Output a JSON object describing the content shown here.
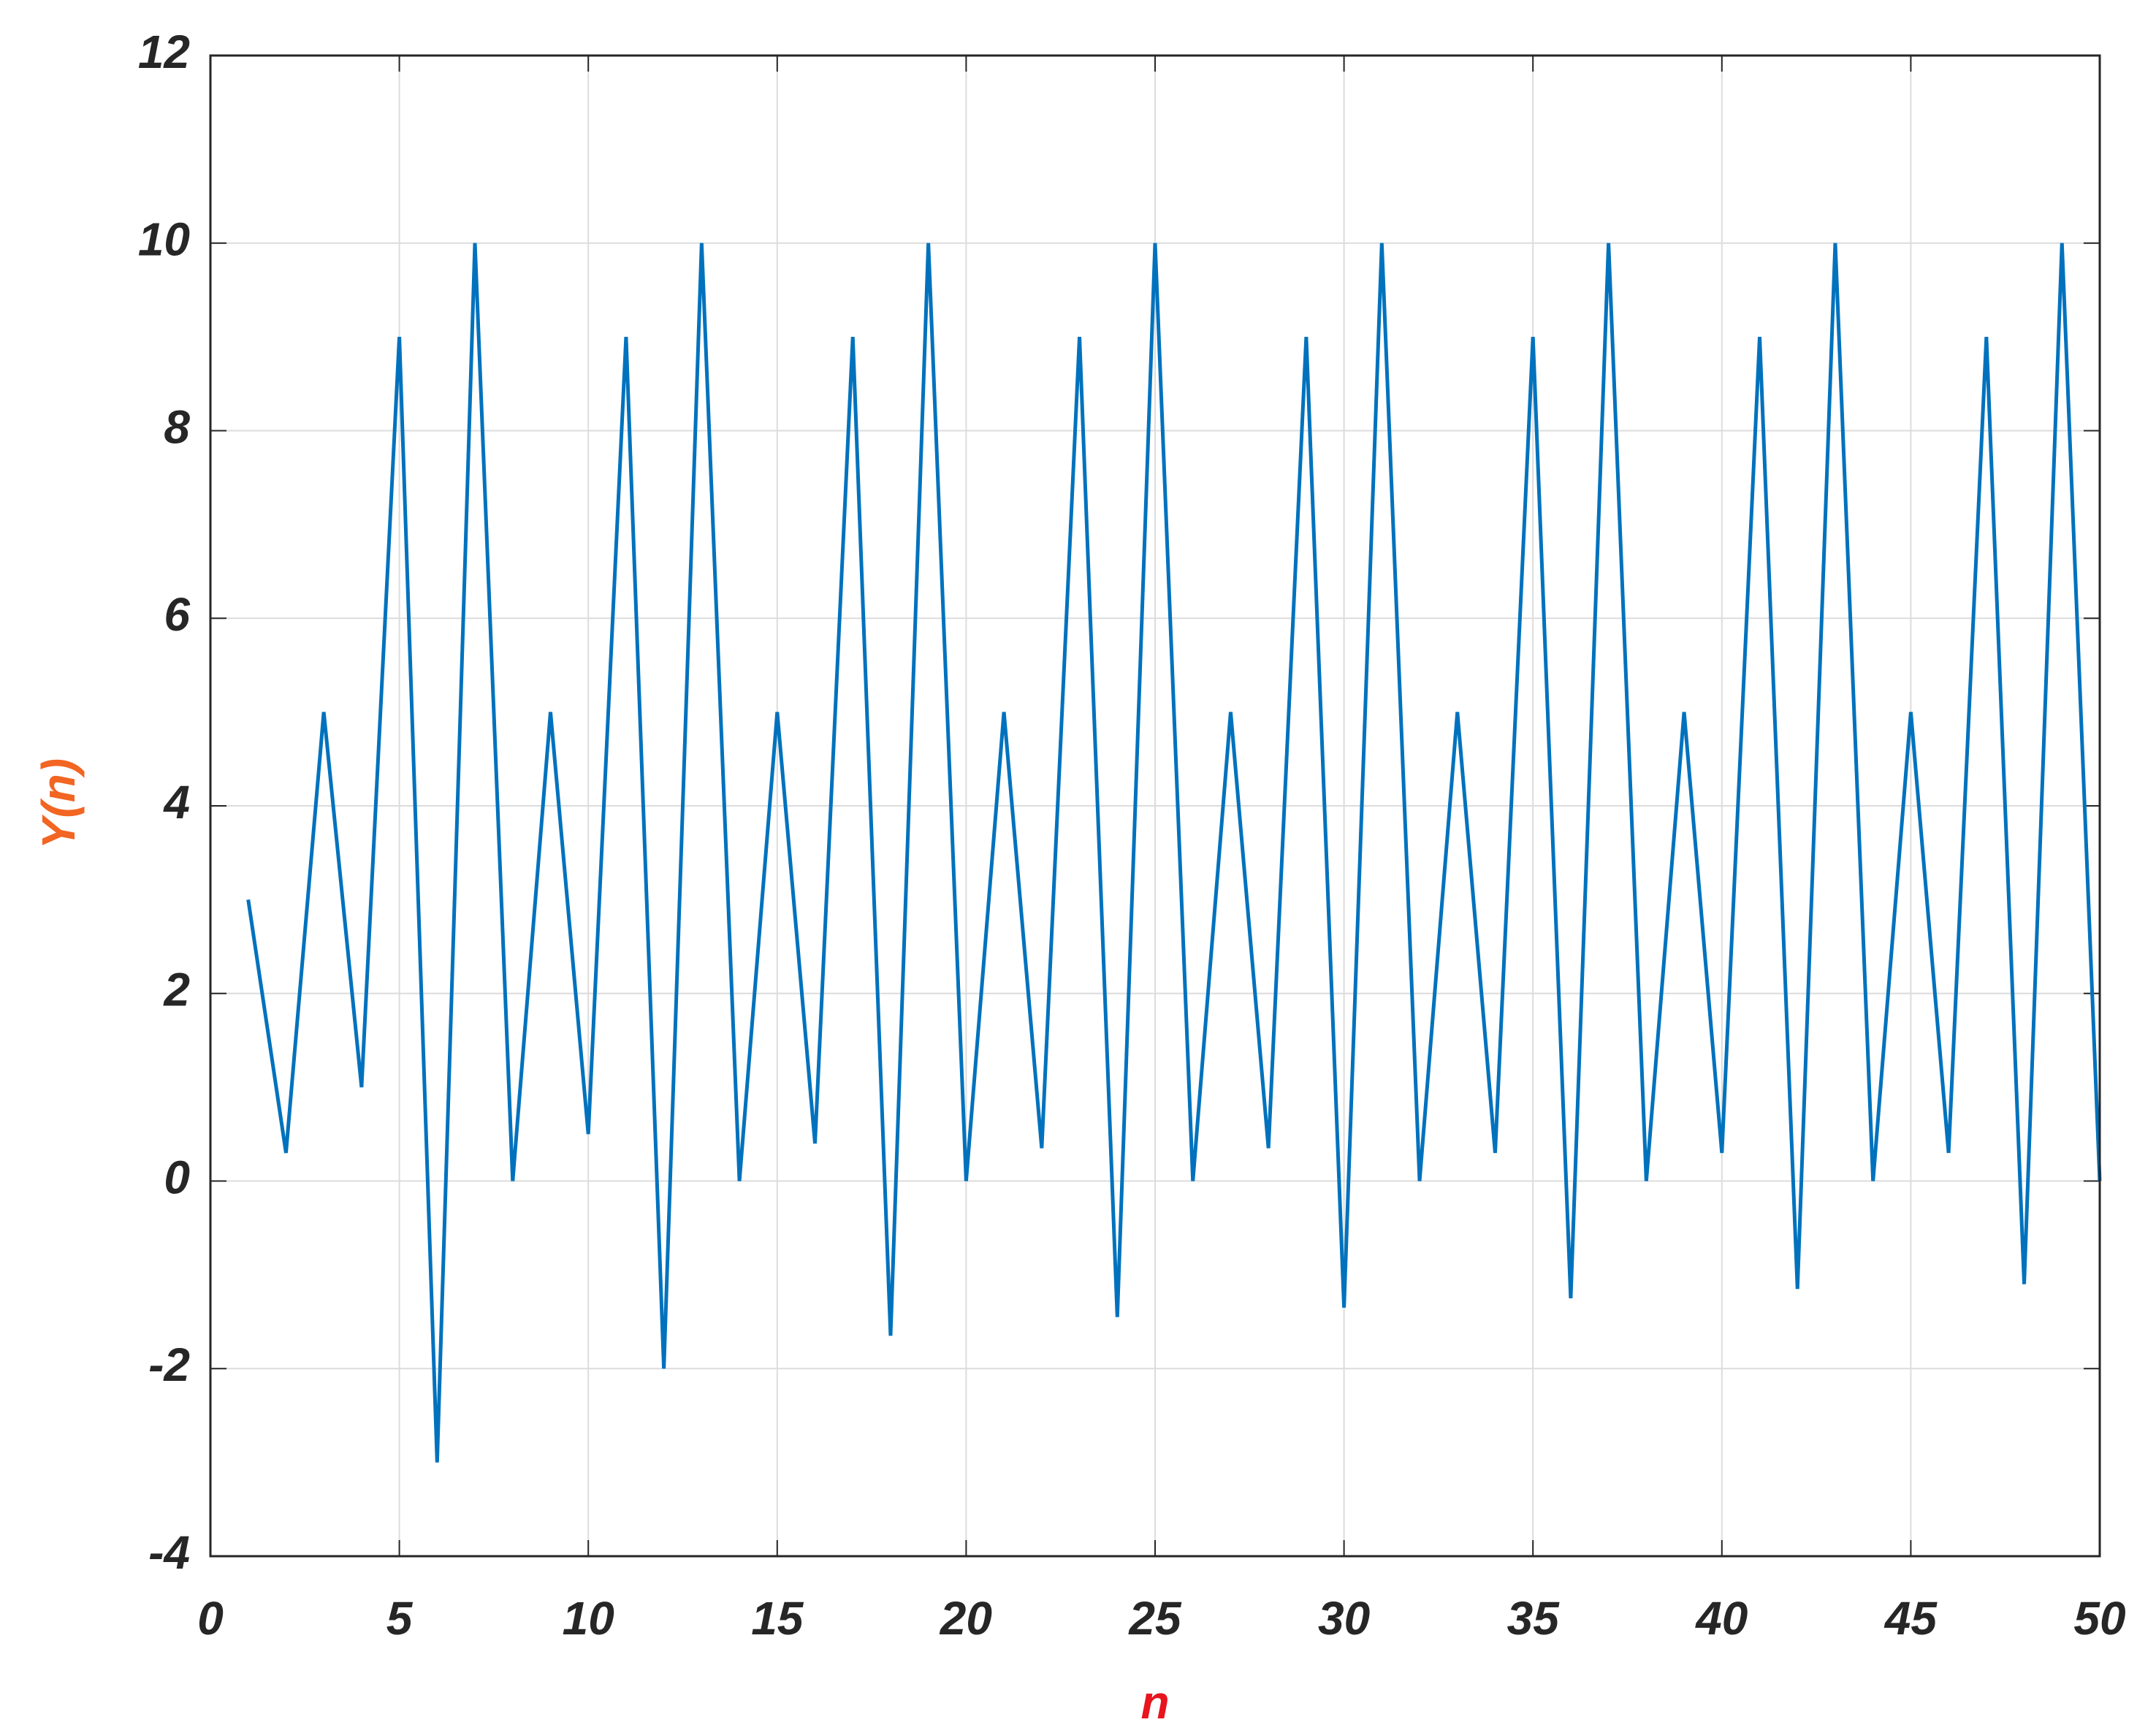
{
  "chart_data": {
    "type": "line",
    "x_label": "n",
    "y_label": "Y(n)",
    "x_label_color": "#e8141e",
    "y_label_color": "#f26522",
    "x": [
      1,
      2,
      3,
      4,
      5,
      6,
      7,
      8,
      9,
      10,
      11,
      12,
      13,
      14,
      15,
      16,
      17,
      18,
      19,
      20,
      21,
      22,
      23,
      24,
      25,
      26,
      27,
      28,
      29,
      30,
      31,
      32,
      33,
      34,
      35,
      36,
      37,
      38,
      39,
      40,
      41,
      42,
      43,
      44,
      45,
      46,
      47,
      48,
      49,
      50
    ],
    "series": [
      {
        "name": "Y(n)",
        "color": "#0072bd",
        "values": [
          3,
          0.3,
          5,
          1,
          9,
          -3,
          10,
          0,
          5,
          0.5,
          9,
          -2,
          10,
          0,
          5,
          0.4,
          9,
          -1.65,
          10,
          0,
          5,
          0.35,
          9,
          -1.45,
          10,
          0,
          5,
          0.35,
          9,
          -1.35,
          10,
          0,
          5,
          0.3,
          9,
          -1.25,
          10,
          0,
          5,
          0.3,
          9,
          -1.15,
          10,
          0,
          5,
          0.3,
          9,
          -1.1,
          10,
          0
        ]
      }
    ],
    "xlim": [
      0,
      50
    ],
    "xticks": [
      0,
      5,
      10,
      15,
      20,
      25,
      30,
      35,
      40,
      45,
      50
    ],
    "ylim": [
      -4,
      12
    ],
    "yticks": [
      -4,
      -2,
      0,
      2,
      4,
      6,
      8,
      10,
      12
    ],
    "grid": true
  }
}
